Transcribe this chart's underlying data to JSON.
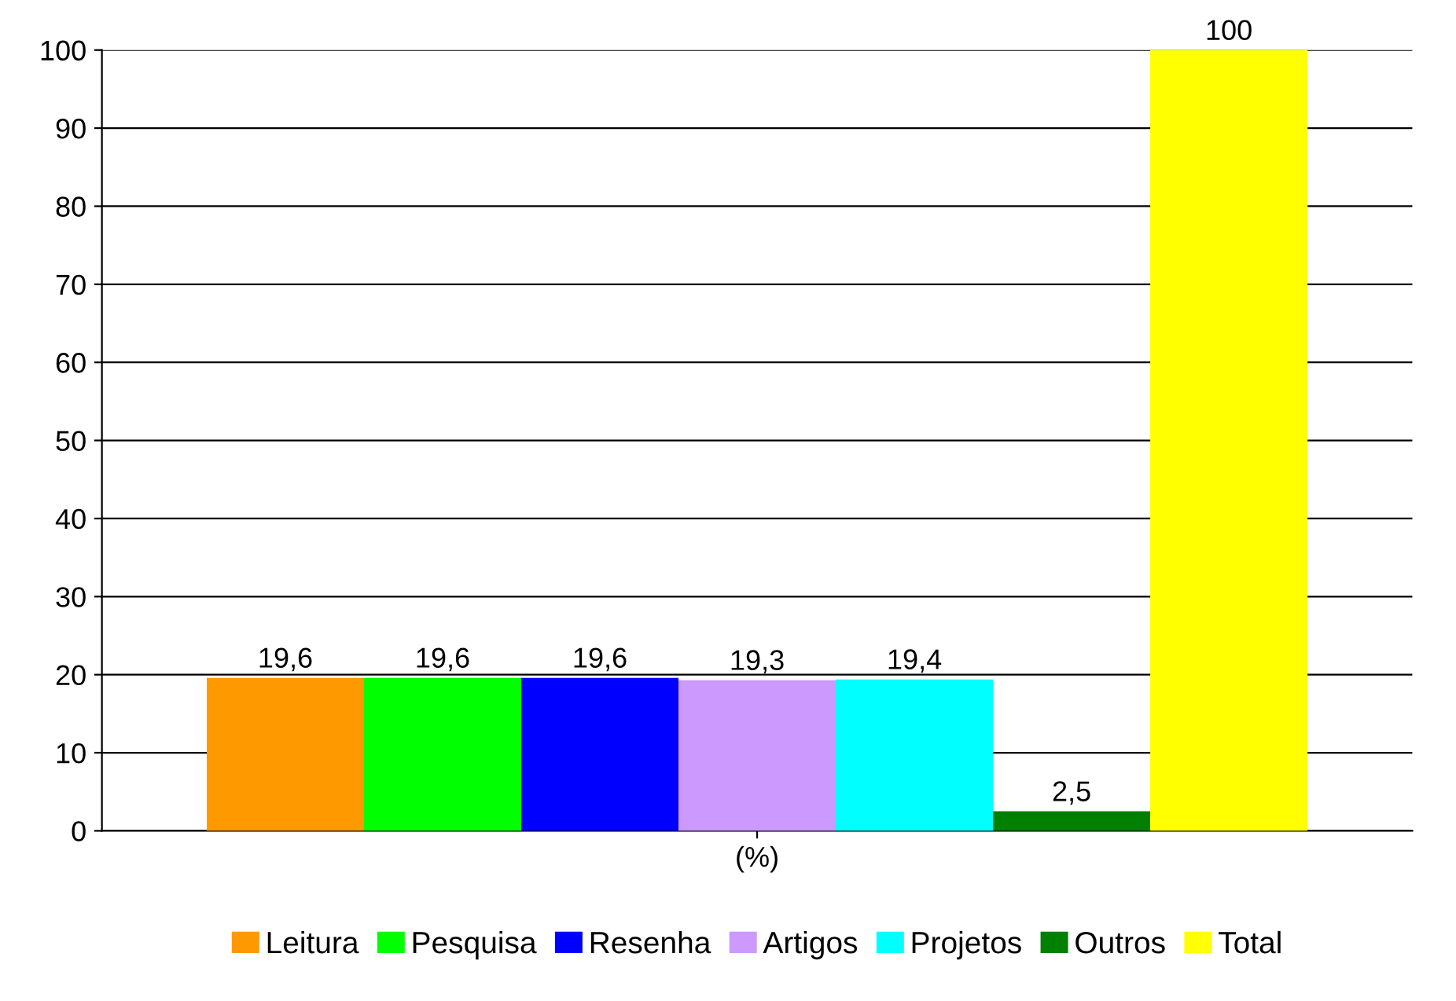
{
  "chart_data": {
    "type": "bar",
    "categories": [
      "(%)"
    ],
    "series": [
      {
        "name": "Leitura",
        "color": "#ff9900",
        "values": [
          19.6
        ],
        "value_labels": [
          "19,6"
        ]
      },
      {
        "name": "Pesquisa",
        "color": "#00ff00",
        "values": [
          19.6
        ],
        "value_labels": [
          "19,6"
        ]
      },
      {
        "name": "Resenha",
        "color": "#0000ff",
        "values": [
          19.6
        ],
        "value_labels": [
          "19,6"
        ]
      },
      {
        "name": "Artigos",
        "color": "#cc99ff",
        "values": [
          19.3
        ],
        "value_labels": [
          "19,3"
        ]
      },
      {
        "name": "Projetos",
        "color": "#00ffff",
        "values": [
          19.4
        ],
        "value_labels": [
          "19,4"
        ]
      },
      {
        "name": "Outros",
        "color": "#008000",
        "values": [
          2.5
        ],
        "value_labels": [
          "2,5"
        ]
      },
      {
        "name": "Total",
        "color": "#ffff00",
        "values": [
          100
        ],
        "value_labels": [
          "100"
        ]
      }
    ],
    "ylim": [
      0,
      100
    ],
    "yticks": [
      0,
      10,
      20,
      30,
      40,
      50,
      60,
      70,
      80,
      90,
      100
    ],
    "grid": "y",
    "legend": "bottom"
  }
}
